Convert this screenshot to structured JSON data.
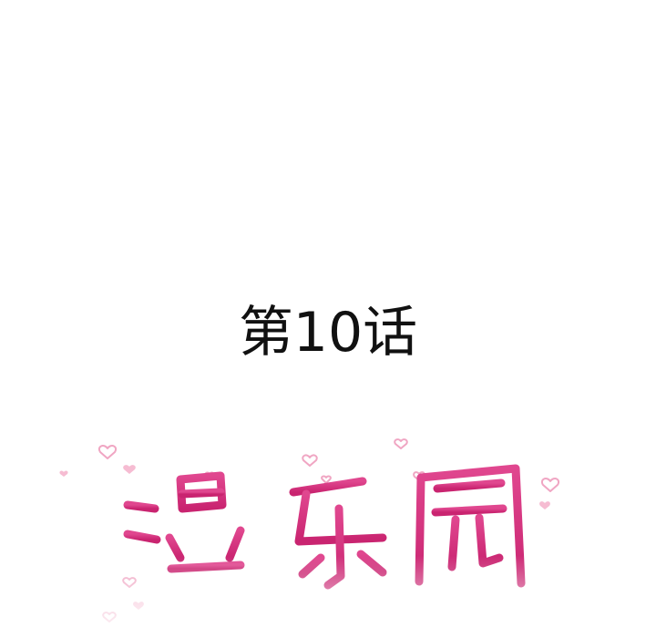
{
  "chapter": {
    "title": "第10话"
  },
  "logo": {
    "text": "湿乐园",
    "stroke_color": "#d2367f",
    "heart_color": "#f2a6c2"
  }
}
